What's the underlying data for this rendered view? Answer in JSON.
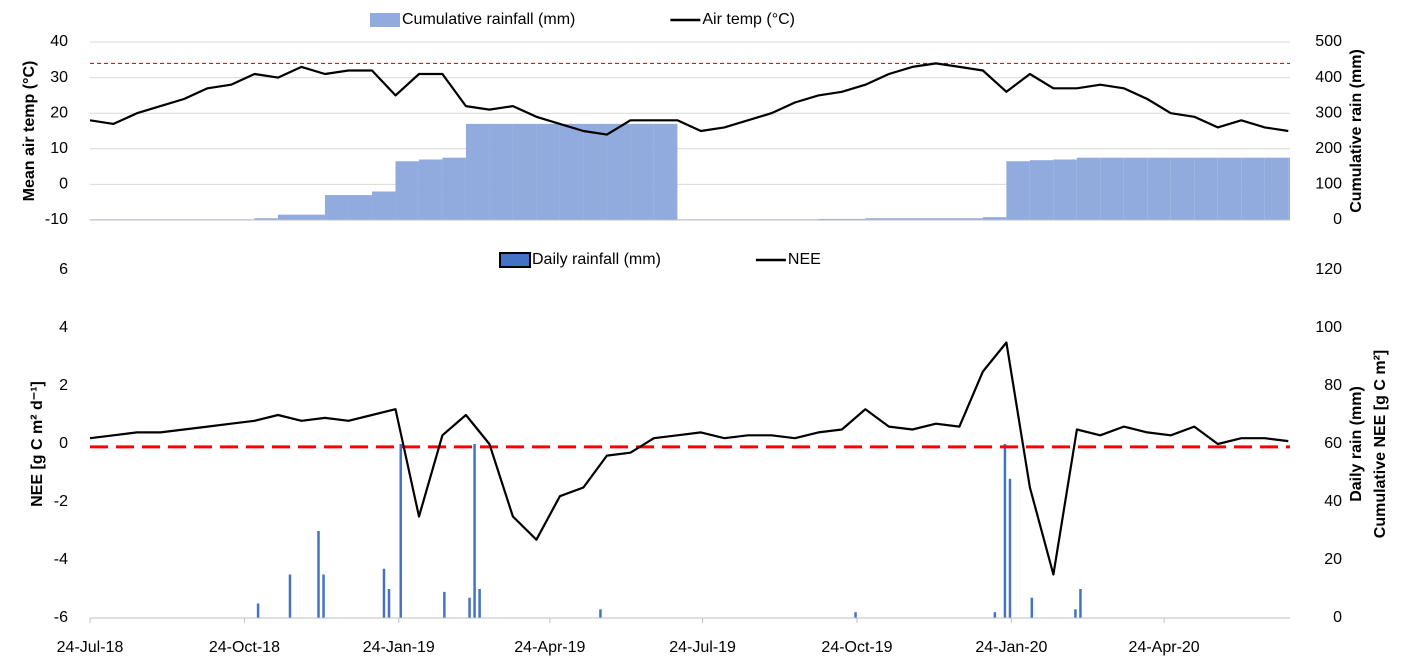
{
  "chart_data": [
    {
      "type": "line",
      "x": [
        "2018-07-24",
        "2018-08-07",
        "2018-08-21",
        "2018-09-04",
        "2018-09-18",
        "2018-10-02",
        "2018-10-16",
        "2018-10-30",
        "2018-11-13",
        "2018-11-27",
        "2018-12-11",
        "2018-12-25",
        "2019-01-08",
        "2019-01-22",
        "2019-02-05",
        "2019-02-19",
        "2019-03-05",
        "2019-03-19",
        "2019-04-02",
        "2019-04-16",
        "2019-04-30",
        "2019-05-14",
        "2019-05-28",
        "2019-06-11",
        "2019-06-25",
        "2019-07-09",
        "2019-07-23",
        "2019-08-06",
        "2019-08-20",
        "2019-09-03",
        "2019-09-17",
        "2019-10-01",
        "2019-10-15",
        "2019-10-29",
        "2019-11-12",
        "2019-11-26",
        "2019-12-10",
        "2019-12-24",
        "2020-01-07",
        "2020-01-21",
        "2020-02-04",
        "2020-02-18",
        "2020-03-03",
        "2020-03-17",
        "2020-03-31",
        "2020-04-14",
        "2020-04-28",
        "2020-05-12",
        "2020-05-26",
        "2020-06-09",
        "2020-06-23",
        "2020-07-07"
      ],
      "xlim": [
        "2018-07-24",
        "2020-07-08"
      ],
      "ylim": [
        -10,
        40
      ],
      "yticks": [
        -10,
        0,
        10,
        20,
        30,
        40
      ],
      "y2lim": [
        0,
        500
      ],
      "y2ticks": [
        0,
        100,
        200,
        300,
        400,
        500
      ],
      "ylabel": "Mean air temp (°C)",
      "y2label": [
        "Cumulative rain (mm)"
      ],
      "grid": true,
      "hline": {
        "value": 34,
        "color": "#c00000"
      },
      "series": [
        {
          "name": "Cumulative rainfall (mm)",
          "type": "bar",
          "axis": "y2",
          "color": "#92abde",
          "values": [
            2,
            2,
            2,
            2,
            2,
            2,
            2,
            5,
            15,
            15,
            70,
            70,
            80,
            165,
            170,
            175,
            270,
            270,
            270,
            270,
            270,
            270,
            270,
            270,
            270,
            2,
            2,
            2,
            2,
            2,
            2,
            3,
            3,
            5,
            5,
            5,
            5,
            5,
            8,
            165,
            168,
            170,
            175,
            175,
            175,
            175,
            175,
            175,
            175,
            175,
            175,
            175
          ]
        },
        {
          "name": "Air temp (°C)",
          "type": "line",
          "color": "#000000",
          "values": [
            18,
            17,
            20,
            22,
            24,
            27,
            28,
            31,
            30,
            33,
            31,
            32,
            32,
            25,
            31,
            31,
            22,
            21,
            22,
            19,
            17,
            15,
            14,
            18,
            18,
            18,
            15,
            16,
            18,
            20,
            23,
            25,
            26,
            28,
            31,
            33,
            34,
            33,
            32,
            26,
            31,
            27,
            27,
            28,
            27,
            24,
            20,
            19,
            16,
            18,
            16,
            15
          ]
        }
      ]
    },
    {
      "type": "line",
      "x": [
        "2018-07-24",
        "2018-08-07",
        "2018-08-21",
        "2018-09-04",
        "2018-09-18",
        "2018-10-02",
        "2018-10-16",
        "2018-10-30",
        "2018-11-13",
        "2018-11-27",
        "2018-12-11",
        "2018-12-25",
        "2019-01-08",
        "2019-01-22",
        "2019-02-05",
        "2019-02-19",
        "2019-03-05",
        "2019-03-19",
        "2019-04-02",
        "2019-04-16",
        "2019-04-30",
        "2019-05-14",
        "2019-05-28",
        "2019-06-11",
        "2019-06-25",
        "2019-07-09",
        "2019-07-23",
        "2019-08-06",
        "2019-08-20",
        "2019-09-03",
        "2019-09-17",
        "2019-10-01",
        "2019-10-15",
        "2019-10-29",
        "2019-11-12",
        "2019-11-26",
        "2019-12-10",
        "2019-12-24",
        "2020-01-07",
        "2020-01-21",
        "2020-02-04",
        "2020-02-18",
        "2020-03-03",
        "2020-03-17",
        "2020-03-31",
        "2020-04-14",
        "2020-04-28",
        "2020-05-12",
        "2020-05-26",
        "2020-06-09",
        "2020-06-23",
        "2020-07-07"
      ],
      "xlim": [
        "2018-07-24",
        "2020-07-08"
      ],
      "xticks": [
        {
          "value": "2018-07-24",
          "label": "24-Jul-18"
        },
        {
          "value": "2018-10-24",
          "label": "24-Oct-18"
        },
        {
          "value": "2019-01-24",
          "label": "24-Jan-19"
        },
        {
          "value": "2019-04-24",
          "label": "24-Apr-19"
        },
        {
          "value": "2019-07-24",
          "label": "24-Jul-19"
        },
        {
          "value": "2019-10-24",
          "label": "24-Oct-19"
        },
        {
          "value": "2020-01-24",
          "label": "24-Jan-20"
        },
        {
          "value": "2020-04-24",
          "label": "24-Apr-20"
        }
      ],
      "ylim": [
        -6,
        6
      ],
      "yticks": [
        -6,
        -4,
        -2,
        0,
        2,
        4,
        6
      ],
      "y2lim": [
        0,
        120
      ],
      "y2ticks": [
        0,
        20,
        40,
        60,
        80,
        100,
        120
      ],
      "ylabel": "NEE [g C m² d⁻¹]",
      "y2label": [
        "Daily rain (mm)",
        "Cumulative NEE [g C m²]"
      ],
      "grid": false,
      "hline": {
        "value": -0.1,
        "color": "#ff0000"
      },
      "series": [
        {
          "name": "Daily rainfall (mm)",
          "type": "bar",
          "axis": "y2",
          "color": "#4472c4",
          "x": [
            "2018-11-01",
            "2018-11-20",
            "2018-12-07",
            "2018-12-10",
            "2019-01-15",
            "2019-01-18",
            "2019-01-25",
            "2019-02-20",
            "2019-03-07",
            "2019-03-10",
            "2019-03-13",
            "2019-05-24",
            "2019-10-23",
            "2020-01-14",
            "2020-01-20",
            "2020-01-23",
            "2020-02-05",
            "2020-03-02",
            "2020-03-05"
          ],
          "values": [
            5,
            15,
            30,
            15,
            17,
            10,
            60,
            9,
            7,
            60,
            10,
            3,
            2,
            2,
            60,
            48,
            7,
            3,
            10
          ]
        },
        {
          "name": "NEE",
          "type": "line",
          "color": "#000000",
          "values": [
            0.2,
            0.3,
            0.4,
            0.4,
            0.5,
            0.6,
            0.7,
            0.8,
            1.0,
            0.8,
            0.9,
            0.8,
            1.0,
            1.2,
            -2.5,
            0.3,
            1.0,
            0.0,
            -2.5,
            -3.3,
            -1.8,
            -1.5,
            -0.4,
            -0.3,
            0.2,
            0.3,
            0.4,
            0.2,
            0.3,
            0.3,
            0.2,
            0.4,
            0.5,
            1.2,
            0.6,
            0.5,
            0.7,
            0.6,
            2.5,
            3.5,
            -1.5,
            -4.5,
            0.5,
            0.3,
            0.6,
            0.4,
            0.3,
            0.6,
            0.0,
            0.2,
            0.2,
            0.1
          ]
        }
      ]
    }
  ]
}
